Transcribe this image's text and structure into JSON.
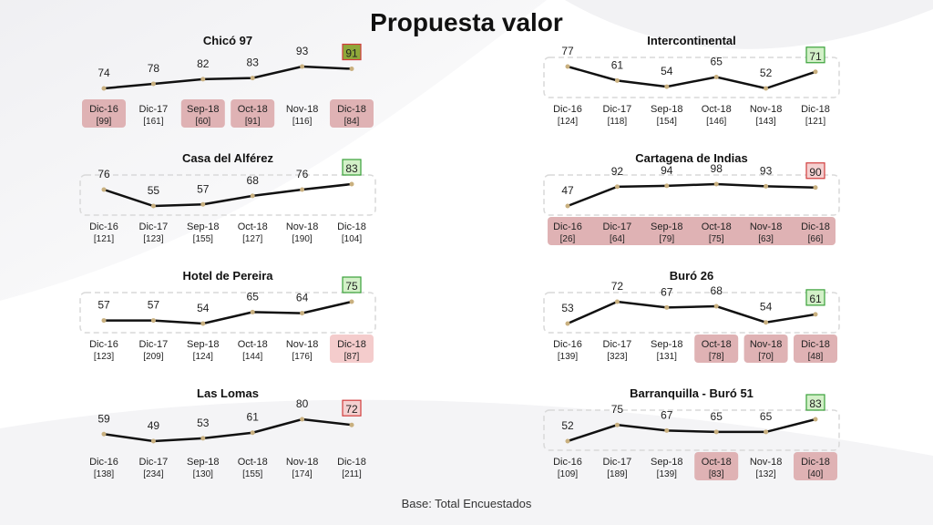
{
  "page": {
    "title": "Propuesta valor",
    "base_note": "Base: Total Encuestados"
  },
  "colors": {
    "line": "#111111",
    "marker": "#c9b07f",
    "good_fill": "#d3f0c8",
    "good_border": "#3aa13a",
    "bad_fill": "#f4d0d0",
    "bad_border": "#d13c3c",
    "olive_fill": "#8fa83a",
    "red_band": "#dfb2b4",
    "pink_band": "#f4cccc"
  },
  "chart_data": [
    {
      "type": "line",
      "title": "Chicó 97",
      "categories": [
        "Dic-16",
        "Dic-17",
        "Sep-18",
        "Oct-18",
        "Nov-18",
        "Dic-18"
      ],
      "values": [
        74,
        78,
        82,
        83,
        93,
        91
      ],
      "bases": [
        "[99]",
        "[161]",
        "[60]",
        "[91]",
        "[116]",
        "[84]"
      ],
      "highlight": [
        true,
        false,
        true,
        true,
        false,
        true
      ],
      "last_box": "olive",
      "dashed_frame": false
    },
    {
      "type": "line",
      "title": "Intercontinental",
      "categories": [
        "Dic-16",
        "Dic-17",
        "Sep-18",
        "Oct-18",
        "Nov-18",
        "Dic-18"
      ],
      "values": [
        77,
        61,
        54,
        65,
        52,
        71
      ],
      "bases": [
        "[124]",
        "[118]",
        "[154]",
        "[146]",
        "[143]",
        "[121]"
      ],
      "highlight": [
        false,
        false,
        false,
        false,
        false,
        false
      ],
      "last_box": "good",
      "dashed_frame": true
    },
    {
      "type": "line",
      "title": "Casa del Alférez",
      "categories": [
        "Dic-16",
        "Dic-17",
        "Sep-18",
        "Oct-18",
        "Nov-18",
        "Dic-18"
      ],
      "values": [
        76,
        55,
        57,
        68,
        76,
        83
      ],
      "bases": [
        "[121]",
        "[123]",
        "[155]",
        "[127]",
        "[190]",
        "[104]"
      ],
      "highlight": [
        false,
        false,
        false,
        false,
        false,
        false
      ],
      "last_box": "good",
      "dashed_frame": true
    },
    {
      "type": "line",
      "title": "Cartagena de Indias",
      "categories": [
        "Dic-16",
        "Dic-17",
        "Sep-18",
        "Oct-18",
        "Nov-18",
        "Dic-18"
      ],
      "values": [
        47,
        92,
        94,
        98,
        93,
        90
      ],
      "bases": [
        "[26]",
        "[64]",
        "[79]",
        "[75]",
        "[63]",
        "[66]"
      ],
      "highlight": "band",
      "last_box": "bad",
      "dashed_frame": true
    },
    {
      "type": "line",
      "title": "Hotel de Pereira",
      "categories": [
        "Dic-16",
        "Dic-17",
        "Sep-18",
        "Oct-18",
        "Nov-18",
        "Dic-18"
      ],
      "values": [
        57,
        57,
        54,
        65,
        64,
        75
      ],
      "bases": [
        "[123]",
        "[209]",
        "[124]",
        "[144]",
        "[176]",
        "[87]"
      ],
      "highlight": [
        false,
        false,
        false,
        false,
        false,
        "pink"
      ],
      "last_box": "good",
      "dashed_frame": true
    },
    {
      "type": "line",
      "title": "Buró 26",
      "categories": [
        "Dic-16",
        "Dic-17",
        "Sep-18",
        "Oct-18",
        "Nov-18",
        "Dic-18"
      ],
      "values": [
        53,
        72,
        67,
        68,
        54,
        61
      ],
      "bases": [
        "[139]",
        "[323]",
        "[131]",
        "[78]",
        "[70]",
        "[48]"
      ],
      "highlight": [
        false,
        false,
        false,
        true,
        true,
        true
      ],
      "last_box": "good",
      "dashed_frame": true
    },
    {
      "type": "line",
      "title": "Las Lomas",
      "categories": [
        "Dic-16",
        "Dic-17",
        "Sep-18",
        "Oct-18",
        "Nov-18",
        "Dic-18"
      ],
      "values": [
        59,
        49,
        53,
        61,
        80,
        72
      ],
      "bases": [
        "[138]",
        "[234]",
        "[130]",
        "[155]",
        "[174]",
        "[211]"
      ],
      "highlight": [
        false,
        false,
        false,
        false,
        false,
        false
      ],
      "last_box": "bad",
      "dashed_frame": false
    },
    {
      "type": "line",
      "title": "Barranquilla - Buró 51",
      "categories": [
        "Dic-16",
        "Dic-17",
        "Sep-18",
        "Oct-18",
        "Nov-18",
        "Dic-18"
      ],
      "values": [
        52,
        75,
        67,
        65,
        65,
        83
      ],
      "bases": [
        "[109]",
        "[189]",
        "[139]",
        "[83]",
        "[132]",
        "[40]"
      ],
      "highlight": [
        false,
        false,
        false,
        true,
        false,
        true
      ],
      "last_box": "good",
      "dashed_frame": true
    }
  ]
}
